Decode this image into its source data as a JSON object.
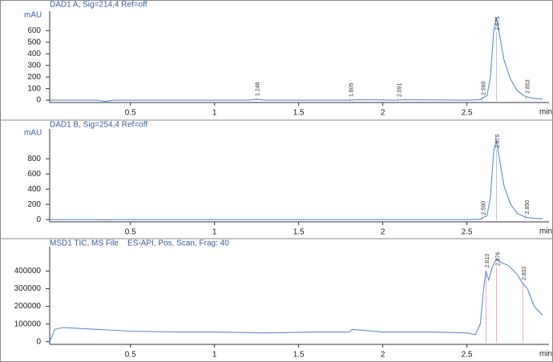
{
  "chart_data": [
    {
      "type": "line",
      "title": "DAD1 A, Sig=214,4 Ref=off",
      "ylabel": "mAU",
      "xlabel": "min",
      "x": [
        0.02,
        0.3,
        0.35,
        0.4,
        1.2,
        1.25,
        1.3,
        1.8,
        1.85,
        2.09,
        2.1,
        2.5,
        2.58,
        2.6,
        2.62,
        2.64,
        2.66,
        2.675,
        2.69,
        2.72,
        2.76,
        2.8,
        2.85,
        2.9,
        2.95
      ],
      "series": [
        {
          "color": "#5b8ccc",
          "values": [
            0,
            0,
            -10,
            0,
            0,
            8,
            0,
            0,
            5,
            0,
            4,
            0,
            5,
            25,
            40,
            200,
            600,
            710,
            600,
            350,
            180,
            80,
            30,
            15,
            10
          ]
        }
      ],
      "xlim": [
        0.02,
        2.95
      ],
      "xticks": [
        0.5,
        1,
        1.5,
        2,
        2.5
      ],
      "ylim": [
        -20,
        740
      ],
      "yticks": [
        0,
        100,
        200,
        300,
        400,
        500,
        600
      ],
      "annotations": [
        {
          "text": "1.248",
          "x": 1.248
        },
        {
          "text": "1.805",
          "x": 1.805
        },
        {
          "text": "2.091",
          "x": 2.091
        },
        {
          "text": "2.590",
          "x": 2.59
        },
        {
          "text": "2.675",
          "x": 2.675
        },
        {
          "text": "2.853",
          "x": 2.853
        }
      ]
    },
    {
      "type": "line",
      "title": "DAD1 B, Sig=254,4 Ref=off",
      "ylabel": "mAU",
      "xlabel": "min",
      "x": [
        0.02,
        0.3,
        0.35,
        0.4,
        1.2,
        1.25,
        1.3,
        1.8,
        1.85,
        2.09,
        2.1,
        2.5,
        2.58,
        2.6,
        2.62,
        2.64,
        2.66,
        2.675,
        2.69,
        2.72,
        2.76,
        2.8,
        2.85,
        2.9,
        2.95
      ],
      "series": [
        {
          "color": "#5b8ccc",
          "values": [
            0,
            0,
            -5,
            0,
            0,
            0,
            0,
            0,
            0,
            0,
            0,
            0,
            5,
            30,
            50,
            300,
            900,
            1050,
            850,
            450,
            200,
            80,
            30,
            15,
            10
          ]
        }
      ],
      "xlim": [
        0.02,
        2.95
      ],
      "xticks": [
        0.5,
        1,
        1.5,
        2,
        2.5
      ],
      "ylim": [
        -30,
        1150
      ],
      "yticks": [
        0,
        200,
        400,
        600,
        800
      ],
      "annotations": [
        {
          "text": "2.590",
          "x": 2.59
        },
        {
          "text": "2.675",
          "x": 2.675
        },
        {
          "text": "2.850",
          "x": 2.85
        }
      ]
    },
    {
      "type": "line",
      "title": "MSD1 TIC, MS File    ES-API, Pos, Scan, Frag: 40",
      "xlabel": "min",
      "x": [
        0.02,
        0.05,
        0.1,
        0.3,
        0.5,
        0.8,
        1.0,
        1.3,
        1.6,
        1.8,
        1.82,
        2.0,
        2.3,
        2.5,
        2.55,
        2.58,
        2.6,
        2.613,
        2.63,
        2.65,
        2.676,
        2.7,
        2.75,
        2.8,
        2.832,
        2.86,
        2.9,
        2.95
      ],
      "series": [
        {
          "color": "#5b8ccc",
          "values": [
            0,
            70000,
            80000,
            70000,
            60000,
            55000,
            55000,
            50000,
            55000,
            55000,
            70000,
            55000,
            55000,
            50000,
            40000,
            100000,
            300000,
            400000,
            350000,
            420000,
            470000,
            450000,
            430000,
            380000,
            330000,
            300000,
            200000,
            150000
          ]
        }
      ],
      "xlim": [
        0.02,
        2.95
      ],
      "xticks": [
        0.5,
        1,
        1.5,
        2,
        2.5
      ],
      "ylim": [
        -15000,
        520000
      ],
      "yticks": [
        0,
        100000,
        200000,
        300000,
        400000
      ],
      "annotations": [
        {
          "text": "2.613",
          "x": 2.613
        },
        {
          "text": "2.676",
          "x": 2.676
        },
        {
          "text": "2.832",
          "x": 2.832
        }
      ]
    }
  ]
}
